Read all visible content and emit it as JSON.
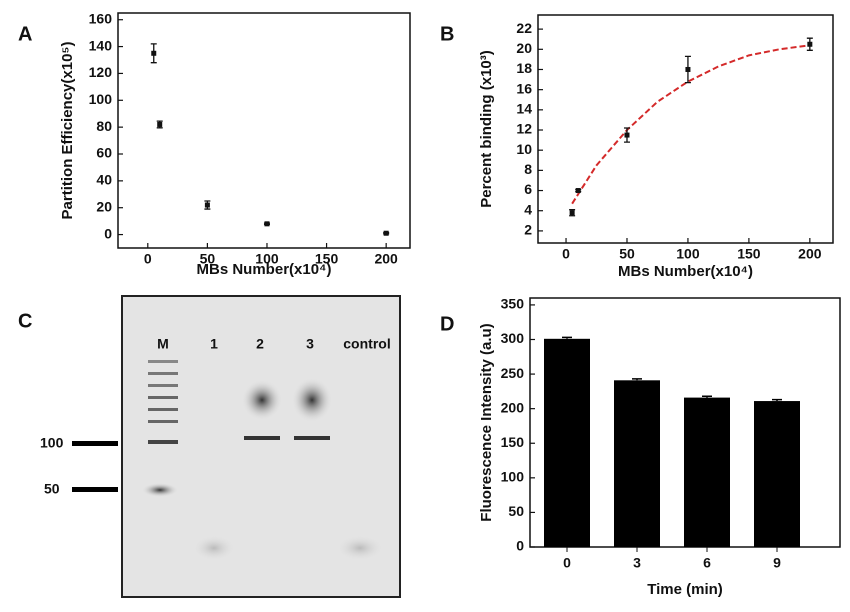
{
  "chart_data": [
    {
      "type": "scatter",
      "label": "A",
      "ylabel": "Partition Efficiency(x10⁵)",
      "xlabel": "MBs Number(x10⁴)",
      "xlim": [
        -25,
        220
      ],
      "ylim": [
        -10,
        165
      ],
      "xticks": [
        0,
        50,
        100,
        150,
        200
      ],
      "yticks": [
        0,
        20,
        40,
        60,
        80,
        100,
        120,
        140,
        160
      ],
      "series": [
        {
          "color": "#111111",
          "x": [
            5,
            10,
            50,
            100,
            200
          ],
          "values": [
            135,
            82,
            22,
            8,
            1
          ],
          "errors": [
            7,
            2.5,
            3,
            0.5,
            0.5
          ]
        }
      ]
    },
    {
      "type": "scatter",
      "label": "B",
      "ylabel": "Percent binding (x10³)",
      "xlabel": "MBs Number(x10⁴)",
      "xlim": [
        -23,
        219
      ],
      "ylim": [
        0.8,
        23.4
      ],
      "xticks": [
        0,
        50,
        100,
        150,
        200
      ],
      "yticks": [
        2,
        4,
        6,
        8,
        10,
        12,
        14,
        16,
        18,
        20,
        22
      ],
      "series": [
        {
          "color": "#111111",
          "x": [
            5,
            10,
            50,
            100,
            200
          ],
          "values": [
            3.8,
            6,
            11.5,
            18,
            20.5
          ],
          "errors": [
            0.3,
            0.1,
            0.7,
            1.3,
            0.6
          ]
        }
      ],
      "fit": {
        "color": "#d42a2a",
        "dashed": true,
        "x": [
          5,
          25,
          50,
          75,
          100,
          125,
          150,
          175,
          200
        ],
        "values": [
          4.7,
          8.5,
          12,
          14.8,
          16.8,
          18.3,
          19.4,
          20,
          20.4
        ]
      }
    },
    {
      "type": "bar",
      "label": "D",
      "ylabel": "Fluorescence Intensity (a.u)",
      "xlabel": "Time (min)",
      "categories": [
        "0",
        "3",
        "6",
        "9"
      ],
      "values": [
        301,
        241,
        216,
        211
      ],
      "errors": [
        2,
        2,
        2,
        2
      ],
      "color": "#000000",
      "ylim": [
        0,
        360
      ],
      "yticks": [
        0,
        50,
        100,
        150,
        200,
        250,
        300,
        350
      ]
    }
  ],
  "gel": {
    "label": "C",
    "lanes": [
      "M",
      "1",
      "2",
      "3",
      "control"
    ],
    "markers": [
      "100",
      "50"
    ]
  }
}
